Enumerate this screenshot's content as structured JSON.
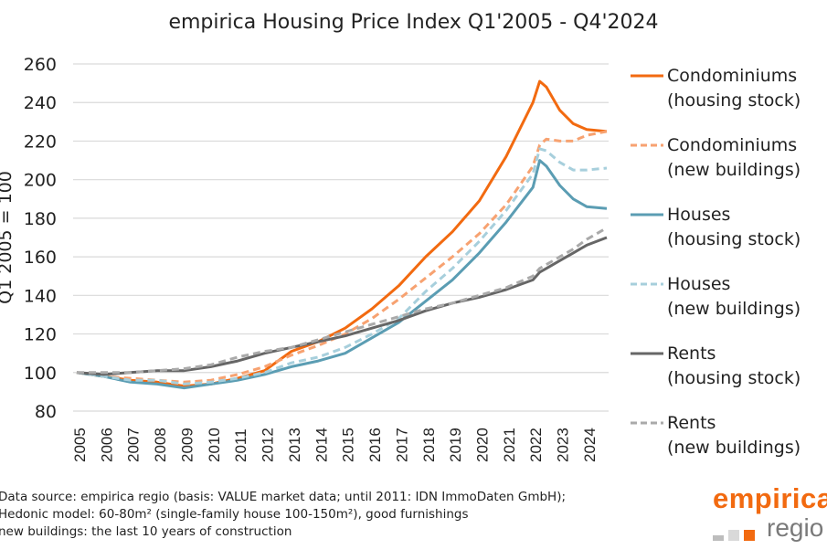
{
  "chart_data": {
    "type": "line",
    "title": "empirica Housing Price Index Q1'2005 - Q4'2024",
    "xlabel": "",
    "ylabel": "Q1 2005 = 100",
    "ylim": [
      80,
      260
    ],
    "yticks": [
      80,
      100,
      120,
      140,
      160,
      180,
      200,
      220,
      240,
      260
    ],
    "xlim": [
      2005.0,
      2024.75
    ],
    "xticks": [
      "2005",
      "2006",
      "2007",
      "2008",
      "2009",
      "2010",
      "2011",
      "2012",
      "2013",
      "2014",
      "2015",
      "2016",
      "2017",
      "2018",
      "2019",
      "2020",
      "2021",
      "2022",
      "2023",
      "2024"
    ],
    "grid": true,
    "legend_position": "right",
    "x": [
      2005.0,
      2006.0,
      2007.0,
      2008.0,
      2009.0,
      2010.0,
      2011.0,
      2012.0,
      2013.0,
      2014.0,
      2015.0,
      2016.0,
      2017.0,
      2018.0,
      2019.0,
      2020.0,
      2021.0,
      2022.0,
      2022.25,
      2022.5,
      2023.0,
      2023.5,
      2024.0,
      2024.75
    ],
    "series": [
      {
        "name": "Condominiums (housing stock)",
        "color": "#f26a10",
        "dash": false,
        "values": [
          100,
          98,
          96,
          95,
          93,
          94,
          97,
          101,
          111,
          116,
          123,
          133,
          145,
          160,
          173,
          189,
          212,
          240,
          251,
          248,
          236,
          229,
          226,
          225
        ]
      },
      {
        "name": "Condominiums (new buildings)",
        "color": "#f7a271",
        "dash": true,
        "values": [
          100,
          98,
          97,
          96,
          95,
          96,
          99,
          103,
          109,
          114,
          120,
          128,
          138,
          149,
          160,
          172,
          187,
          207,
          218,
          221,
          220,
          220,
          223,
          225
        ]
      },
      {
        "name": "Houses (housing stock)",
        "color": "#5b9db3",
        "dash": false,
        "values": [
          100,
          98,
          95,
          94,
          92,
          94,
          96,
          99,
          103,
          106,
          110,
          118,
          126,
          137,
          148,
          162,
          178,
          196,
          210,
          207,
          197,
          190,
          186,
          185
        ]
      },
      {
        "name": "Houses (new buildings)",
        "color": "#a7cfdc",
        "dash": true,
        "values": [
          100,
          98,
          96,
          96,
          94,
          95,
          97,
          100,
          105,
          108,
          113,
          120,
          128,
          142,
          154,
          168,
          184,
          203,
          216,
          215,
          209,
          205,
          205,
          206
        ]
      },
      {
        "name": "Rents (housing stock)",
        "color": "#666666",
        "dash": false,
        "values": [
          100,
          99,
          100,
          101,
          101,
          103,
          106,
          110,
          113,
          116,
          119,
          123,
          127,
          132,
          136,
          139,
          143,
          148,
          152,
          154,
          158,
          162,
          166,
          170
        ]
      },
      {
        "name": "Rents (new buildings)",
        "color": "#aaaaaa",
        "dash": true,
        "values": [
          100,
          100,
          100,
          101,
          102,
          104,
          108,
          111,
          113,
          117,
          121,
          125,
          129,
          133,
          136,
          140,
          144,
          150,
          154,
          156,
          160,
          164,
          169,
          175
        ]
      }
    ]
  },
  "legend": [
    {
      "line1": "Condominiums",
      "line2": "(housing stock)"
    },
    {
      "line1": "Condominiums",
      "line2": "(new buildings)"
    },
    {
      "line1": "Houses",
      "line2": "(housing stock)"
    },
    {
      "line1": "Houses",
      "line2": "(new buildings)"
    },
    {
      "line1": "Rents",
      "line2": "(housing stock)"
    },
    {
      "line1": "Rents",
      "line2": "(new buildings)"
    }
  ],
  "footnote": [
    "Data source: empirica regio (basis: VALUE market data; until 2011: IDN ImmoDaten GmbH);",
    "Hedonic model: 60-80m² (single-family house 100-150m²), good furnishings",
    "new buildings: the last 10 years of construction"
  ],
  "logo": {
    "top": "empirica",
    "bottom": "regio",
    "square_colors": [
      "#bdbdbd",
      "#d9d9d9",
      "#f26a10"
    ]
  }
}
